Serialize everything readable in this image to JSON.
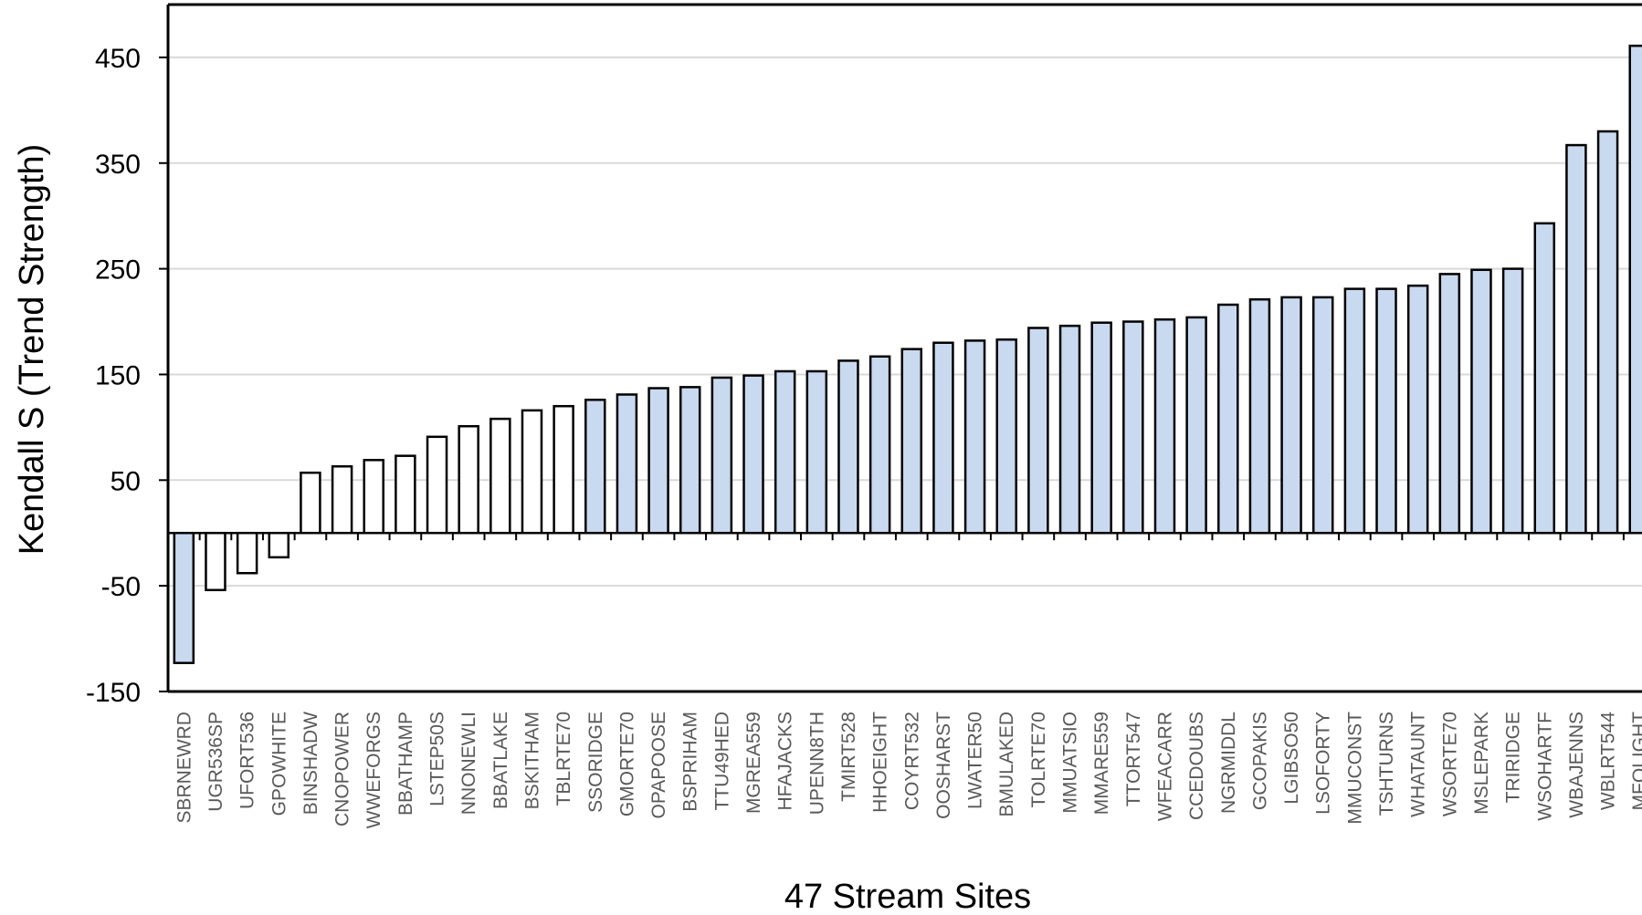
{
  "chart_data": {
    "type": "bar",
    "xlabel": "47 Stream Sites",
    "ylabel": "Kendall S (Trend Strength)",
    "ylim": [
      -150,
      500
    ],
    "yticks": [
      450,
      350,
      250,
      150,
      50,
      -50,
      -150
    ],
    "grid": true,
    "colors": {
      "significant": "#C9D9F0",
      "not_significant": "#FFFFFF",
      "outline": "#000000",
      "grid": "#D9D9D9"
    },
    "categories": [
      "SBRNEWRD",
      "UGR536SP",
      "UFORT536",
      "GPOWHITE",
      "BINSHADW",
      "CNOPOWER",
      "WWEFORGS",
      "BBATHAMP",
      "LSTEP50S",
      "NNONEWLI",
      "BBATLAKE",
      "BSKITHAM",
      "TBLRTE70",
      "SSORIDGE",
      "GMORTE70",
      "OPAPOOSE",
      "BSPRIHAM",
      "TTU49HED",
      "MGREA559",
      "HFAJACKS",
      "UPENN8TH",
      "TMIRT528",
      "HHOEIGHT",
      "COYRT532",
      "OOSHARST",
      "LWATER50",
      "BMULAKED",
      "TOLRTE70",
      "MMUATSIO",
      "MMARE559",
      "TTORT547",
      "WFEACARR",
      "CCEDOUBS",
      "NGRMIDDL",
      "GCOPAKIS",
      "LGIBSO50",
      "LSOFORTY",
      "MMUCONST",
      "TSHTURNS",
      "WHATAUNT",
      "WSORTE70",
      "MSLEPARK",
      "TRIRIDGE",
      "WSOHARTF",
      "WBAJENNS",
      "WBLRT544",
      "MFOLIGHT"
    ],
    "values": [
      -123,
      -54,
      -38,
      -23,
      57,
      63,
      69,
      73,
      91,
      101,
      108,
      116,
      120,
      126,
      131,
      137,
      138,
      147,
      149,
      153,
      153,
      163,
      167,
      174,
      180,
      182,
      183,
      194,
      196,
      199,
      200,
      202,
      204,
      216,
      221,
      223,
      223,
      231,
      231,
      234,
      245,
      249,
      250,
      293,
      367,
      380,
      461
    ],
    "significant": [
      true,
      false,
      false,
      false,
      false,
      false,
      false,
      false,
      false,
      false,
      false,
      false,
      false,
      true,
      true,
      true,
      true,
      true,
      true,
      true,
      true,
      true,
      true,
      true,
      true,
      true,
      true,
      true,
      true,
      true,
      true,
      true,
      true,
      true,
      true,
      true,
      true,
      true,
      true,
      true,
      true,
      true,
      true,
      true,
      true,
      true,
      true
    ]
  }
}
